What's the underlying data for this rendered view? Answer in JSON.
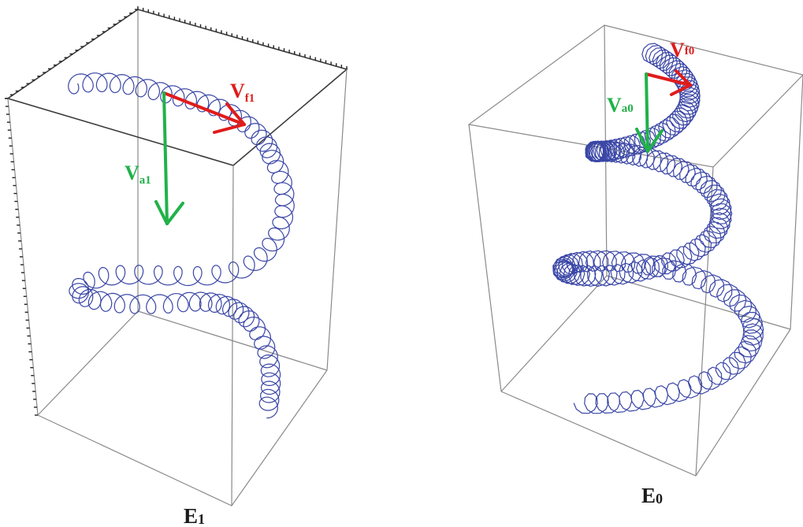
{
  "panels": [
    {
      "caption": "E",
      "caption_sub": "1",
      "vec_f": {
        "main": "V",
        "sub": "f1"
      },
      "vec_a": {
        "main": "V",
        "sub": "a1"
      }
    },
    {
      "caption": "E",
      "caption_sub": "0",
      "vec_f": {
        "main": "V",
        "sub": "f0"
      },
      "vec_a": {
        "main": "V",
        "sub": "a0"
      }
    }
  ],
  "colors": {
    "helix": "#3a46a6",
    "vector_f": "#e01b1b",
    "vector_a": "#21b24a",
    "box": "#8a8a8a"
  }
}
